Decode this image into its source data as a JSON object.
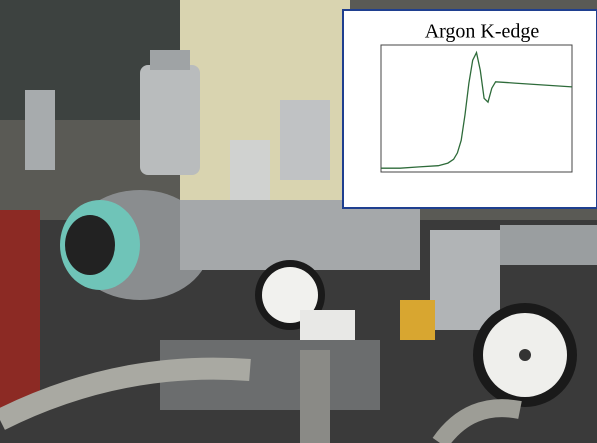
{
  "chart_data": {
    "type": "line",
    "title": "Argon K-edge",
    "x": [
      0,
      10,
      20,
      30,
      35,
      38,
      40,
      42,
      44,
      46,
      48,
      50,
      52,
      54,
      56,
      58,
      60,
      70,
      80,
      90,
      100
    ],
    "series": [
      {
        "color": "#2e6b3a",
        "values": [
          0.03,
          0.03,
          0.04,
          0.05,
          0.07,
          0.1,
          0.15,
          0.25,
          0.45,
          0.7,
          0.88,
          0.94,
          0.8,
          0.58,
          0.55,
          0.66,
          0.71,
          0.7,
          0.69,
          0.68,
          0.67
        ]
      }
    ],
    "xlim": [
      0,
      100
    ],
    "ylim": [
      0,
      1
    ]
  }
}
